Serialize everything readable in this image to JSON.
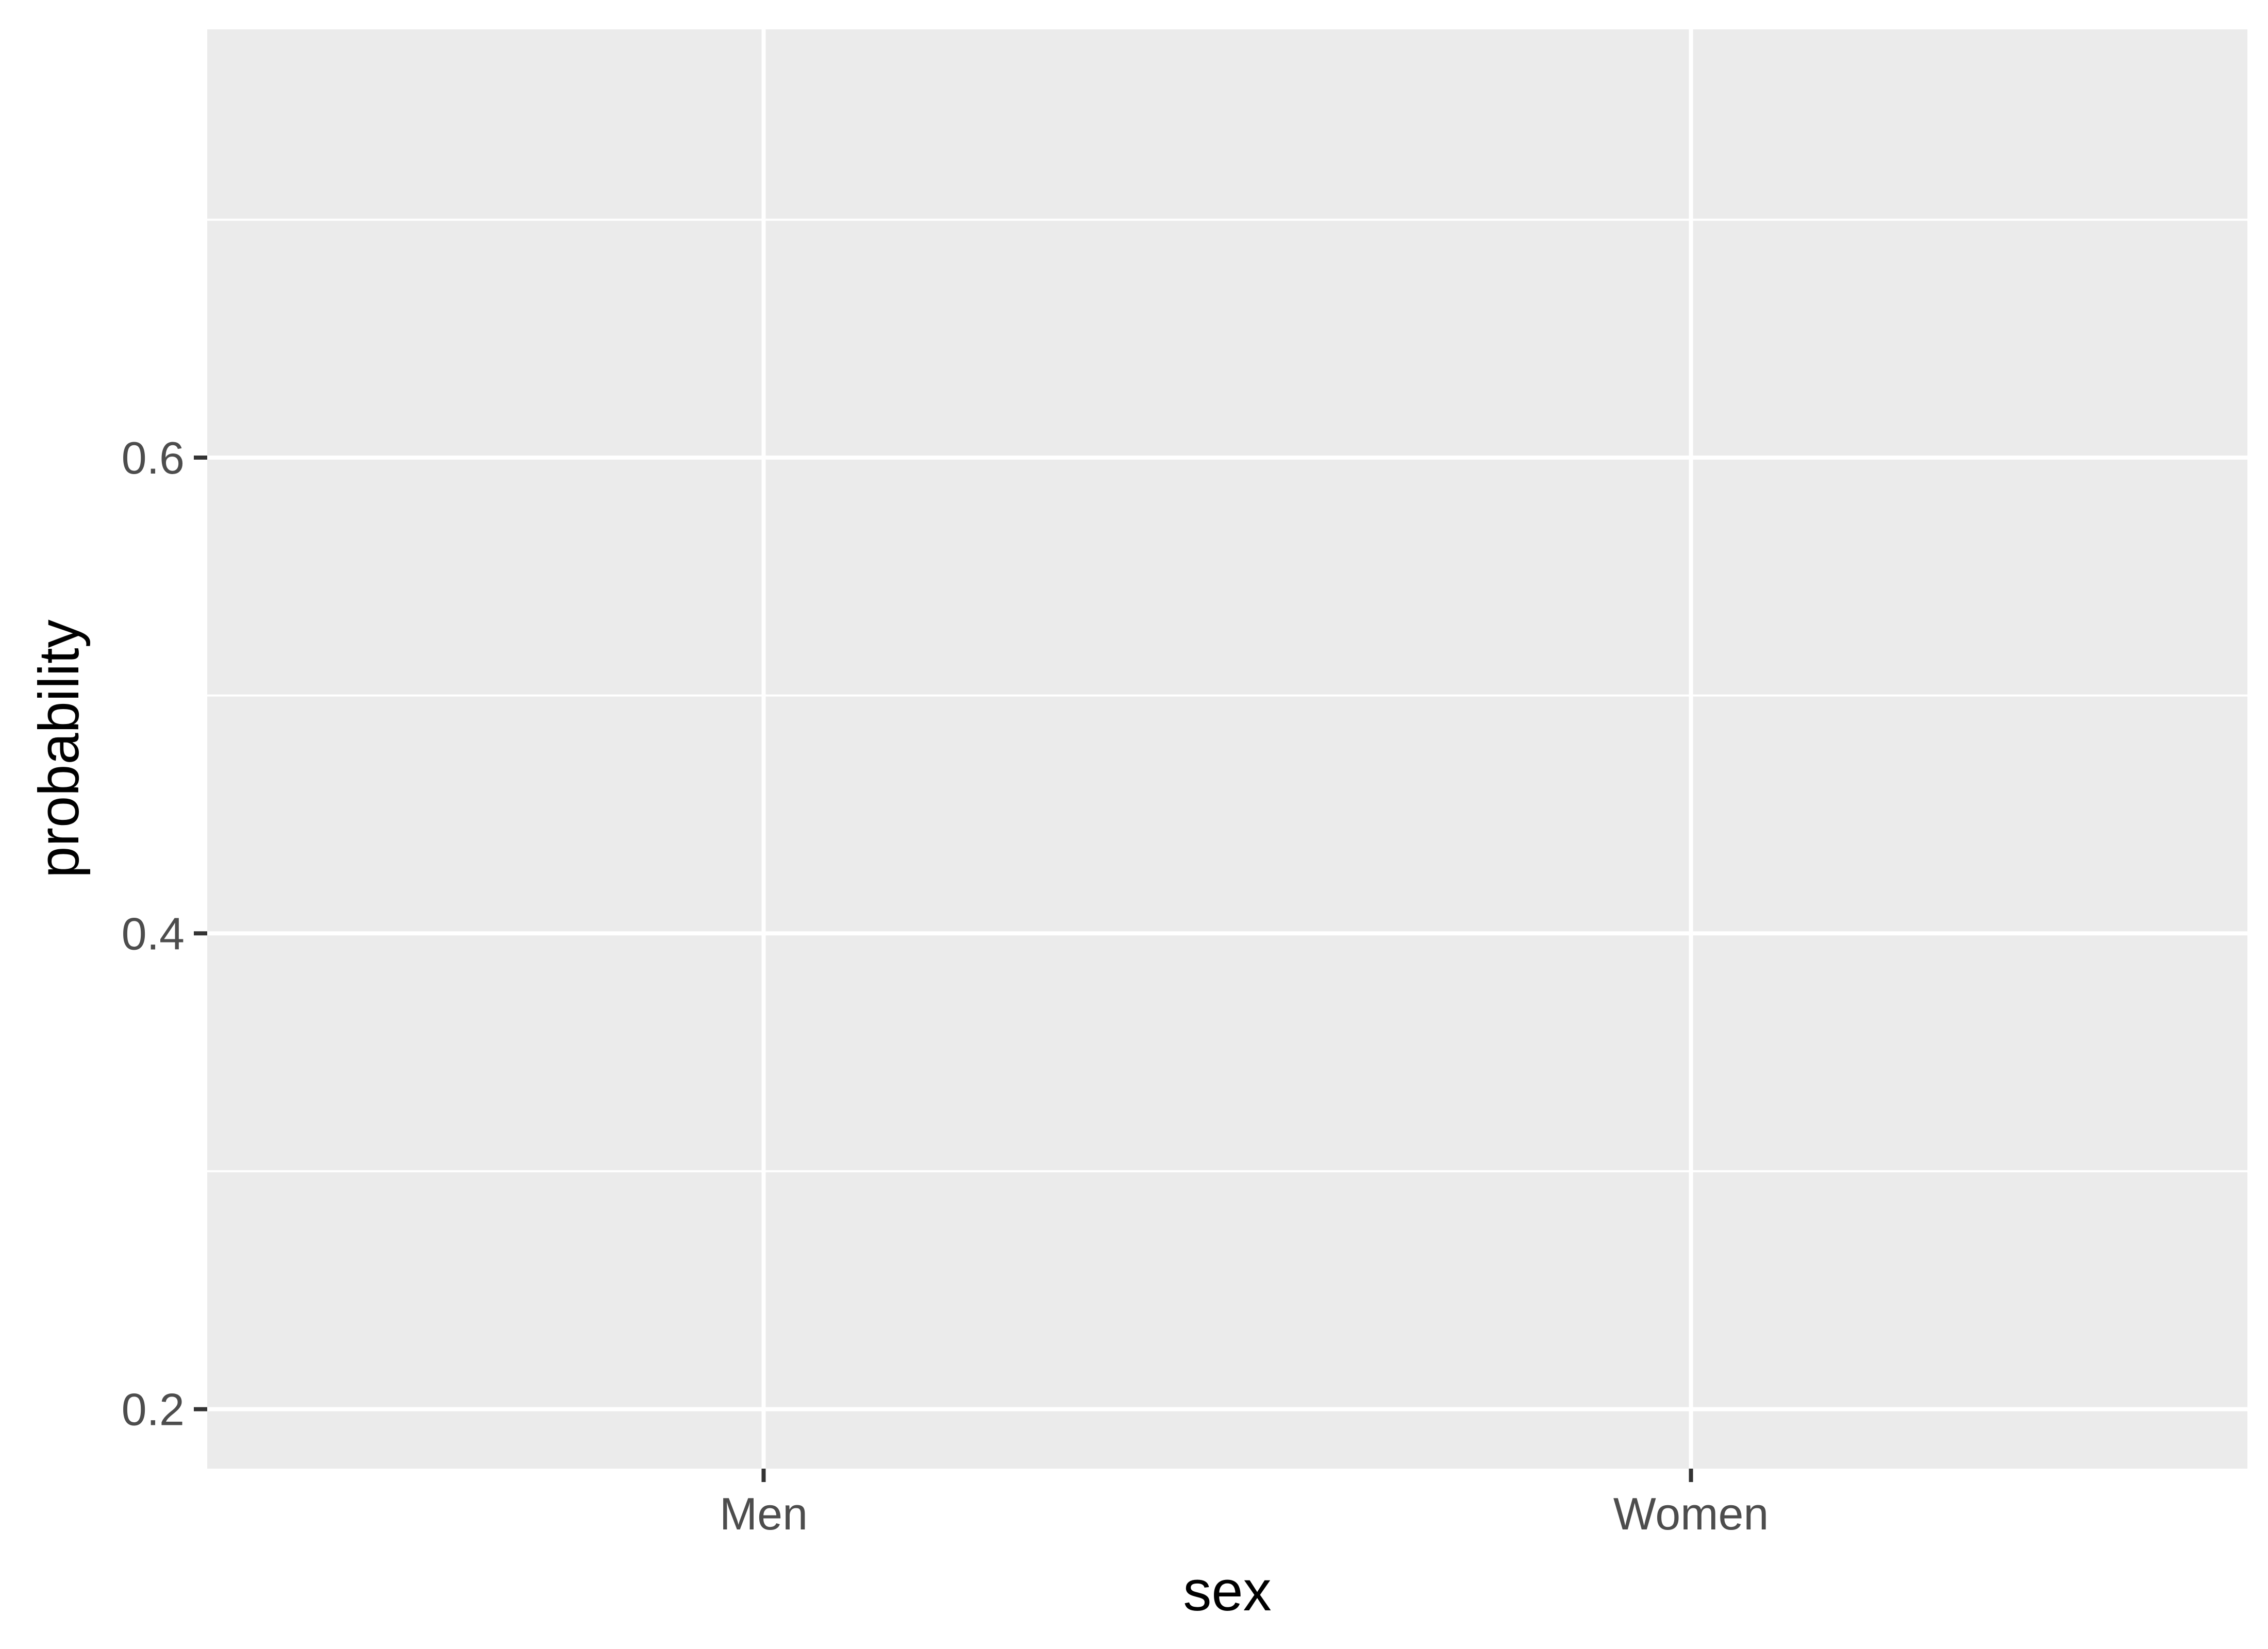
{
  "chart_data": {
    "type": "scatter",
    "title": "",
    "xlabel": "sex",
    "ylabel": "probability",
    "categories": [
      "Men",
      "Women"
    ],
    "ylim": [
      0.175,
      0.78
    ],
    "y_ticks": [
      "0.2",
      "0.4",
      "0.6"
    ],
    "y_tick_values": [
      0.2,
      0.4,
      0.6
    ],
    "y_minor_values": [
      0.3,
      0.5,
      0.7
    ],
    "series": [],
    "grid": true,
    "legend": "none",
    "colors": {
      "panel_background": "#ebebeb",
      "grid": "#ffffff",
      "tick_label": "#4d4d4d",
      "axis_title": "#000000",
      "tick_mark": "#333333"
    }
  }
}
